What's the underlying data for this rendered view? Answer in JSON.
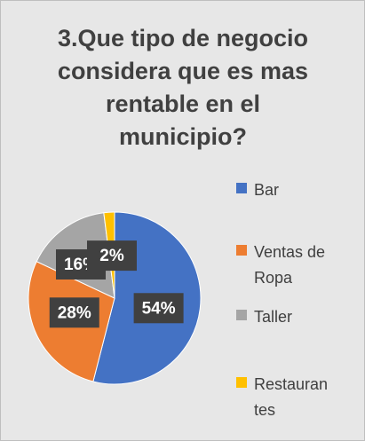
{
  "chart_data": {
    "type": "pie",
    "title": "3.Que tipo de negocio considera que es mas rentable en el municipio?",
    "categories": [
      "Bar",
      "Ventas de Ropa",
      "Taller",
      "Restaurantes"
    ],
    "values": [
      54,
      28,
      16,
      2
    ],
    "value_labels": [
      "54%",
      "28%",
      "16%",
      "2%"
    ],
    "colors": [
      "#4472c4",
      "#ed7d31",
      "#a5a5a5",
      "#ffc000"
    ],
    "legend": "right"
  }
}
